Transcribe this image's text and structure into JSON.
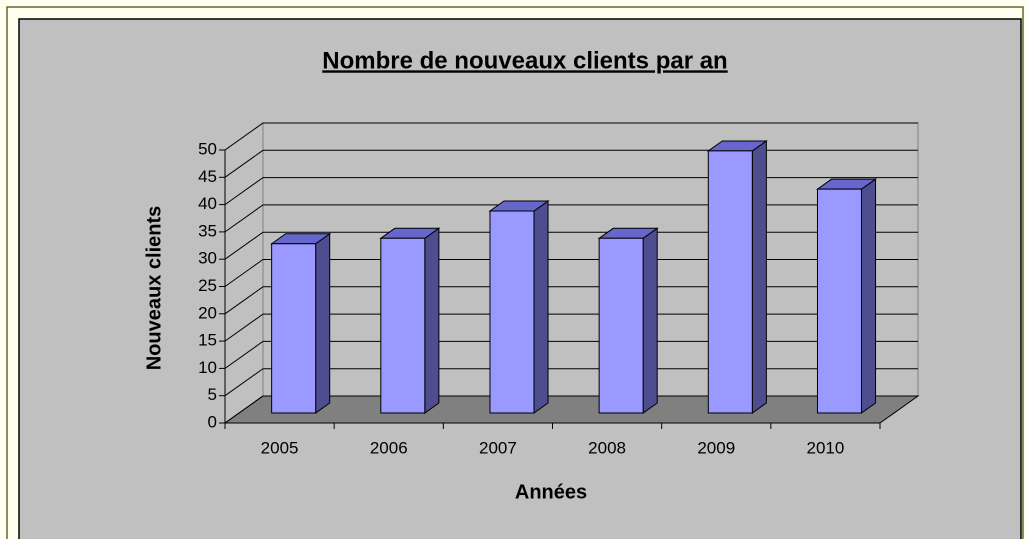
{
  "chart_data": {
    "type": "bar3d",
    "title": "Nombre de nouveaux clients par an",
    "x_label": "Années",
    "y_label": "Nouveaux clients",
    "categories": [
      "2005",
      "2006",
      "2007",
      "2008",
      "2009",
      "2010"
    ],
    "values": [
      31,
      32,
      37,
      32,
      48,
      41
    ],
    "color": "#9999ff",
    "ylim": [
      0,
      50
    ],
    "yticks": [
      0,
      5,
      10,
      15,
      20,
      25,
      30,
      35,
      40,
      45,
      50
    ],
    "grid": true
  }
}
